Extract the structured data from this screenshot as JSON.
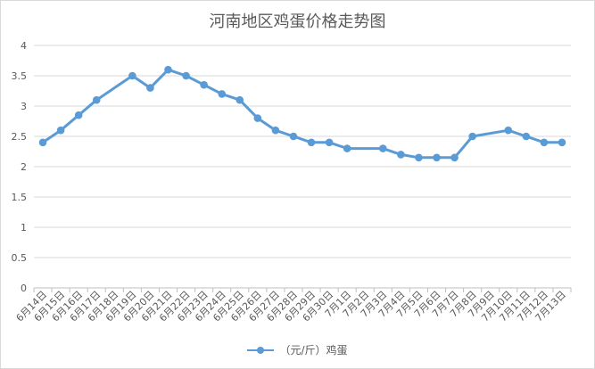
{
  "chart_data": {
    "type": "line",
    "title": "河南地区鸡蛋价格走势图",
    "xlabel": "",
    "ylabel": "",
    "ylim": [
      0,
      4
    ],
    "yticks": [
      "0",
      "0.5",
      "1",
      "1.5",
      "2",
      "2.5",
      "3",
      "3.5",
      "4"
    ],
    "grid": true,
    "legend_position": "bottom",
    "categories": [
      "6月14日",
      "6月15日",
      "6月16日",
      "6月17日",
      "6月18日",
      "6月19日",
      "6月20日",
      "6月21日",
      "6月22日",
      "6月23日",
      "6月24日",
      "6月25日",
      "6月26日",
      "6月27日",
      "6月28日",
      "6月29日",
      "6月30日",
      "7月1日",
      "7月2日",
      "7月3日",
      "7月4日",
      "7月5日",
      "7月6日",
      "7月7日",
      "7月8日",
      "7月9日",
      "7月10日",
      "7月11日",
      "7月12日",
      "7月13日"
    ],
    "series": [
      {
        "name": "（元/斤）鸡蛋",
        "color": "#5B9BD5",
        "values": [
          2.4,
          2.6,
          2.85,
          3.1,
          null,
          3.5,
          3.3,
          3.6,
          3.5,
          3.35,
          3.2,
          3.1,
          2.8,
          2.6,
          2.5,
          2.4,
          2.4,
          2.3,
          null,
          2.3,
          2.2,
          2.15,
          2.15,
          2.15,
          2.5,
          null,
          2.6,
          2.5,
          2.4,
          2.4
        ]
      }
    ]
  }
}
